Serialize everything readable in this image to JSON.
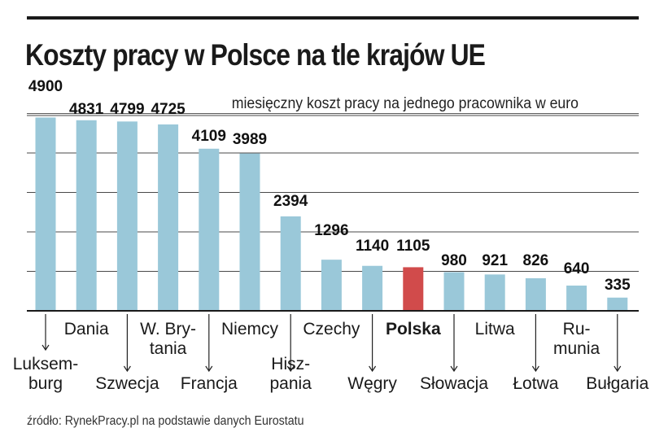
{
  "header": {
    "title": "Koszty pracy w Polsce na tle krajów UE",
    "subtitle": "miesięczny koszt pracy na jednego pracownika w euro"
  },
  "footer": {
    "source": "źródło: RynekPracy.pl na podstawie danych Eurostatu"
  },
  "colors": {
    "bar": "#9ac8d9",
    "highlight": "#d14b4b",
    "grid": "#4a4a4a",
    "text": "#1a1a1a"
  },
  "chart_data": {
    "type": "bar",
    "title": "Koszty pracy w Polsce na tle krajów UE",
    "ylabel": "miesięczny koszt pracy na jednego pracownika w euro",
    "xlabel": "",
    "ylim": [
      0,
      5000
    ],
    "grid": true,
    "highlight": "Polska",
    "categories": [
      "Luksemburg",
      "Dania",
      "Szwecja",
      "W. Brytania",
      "Francja",
      "Niemcy",
      "Hiszpania",
      "Czechy",
      "Węgry",
      "Polska",
      "Słowacja",
      "Litwa",
      "Łotwa",
      "Rumunia",
      "Bułgaria"
    ],
    "category_lines": [
      [
        "Luksem-",
        "burg"
      ],
      [
        "Dania"
      ],
      [
        "Szwecja"
      ],
      [
        "W. Bry-",
        "tania"
      ],
      [
        "Francja"
      ],
      [
        "Niemcy"
      ],
      [
        "Hisz-",
        "pania"
      ],
      [
        "Czechy"
      ],
      [
        "Węgry"
      ],
      [
        "Polska"
      ],
      [
        "Słowacja"
      ],
      [
        "Litwa"
      ],
      [
        "Łotwa"
      ],
      [
        "Ru-",
        "munia"
      ],
      [
        "Bułgaria"
      ]
    ],
    "values": [
      4900,
      4831,
      4799,
      4725,
      4109,
      3989,
      2394,
      1296,
      1140,
      1105,
      980,
      921,
      826,
      640,
      335
    ],
    "value_labels": [
      "4900",
      "4831",
      "4799",
      "4725",
      "4109",
      "3989",
      "2394",
      "1296",
      "1140",
      "1105",
      "980",
      "921",
      "826",
      "640",
      "335"
    ]
  }
}
